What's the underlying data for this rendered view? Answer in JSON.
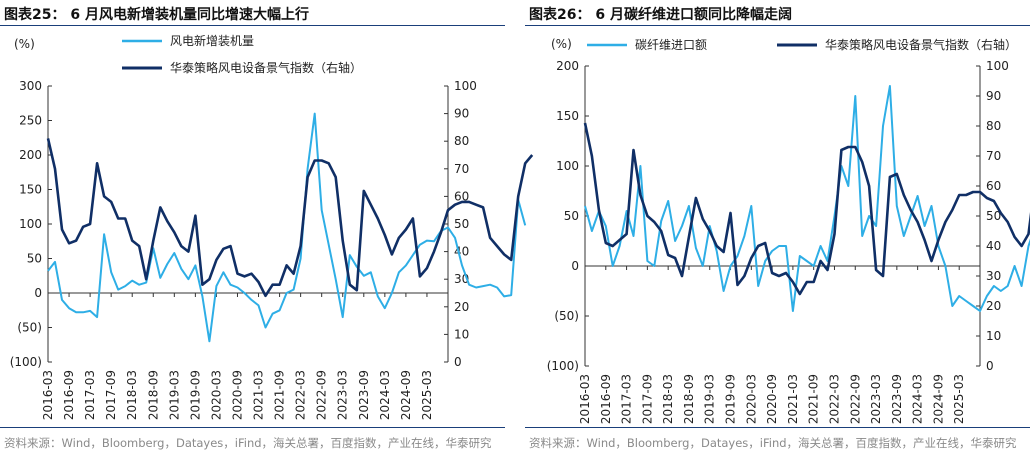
{
  "colors": {
    "light": "#2eaee6",
    "dark": "#102f66",
    "rule": "#1a3f7a",
    "source": "#8a8a8a"
  },
  "source_text": "资料来源：Wind，Bloomberg，Datayes，iFind，海关总署，百度指数，产业在线，华泰研究",
  "chart_data": [
    {
      "type": "line",
      "title": "图表25：  6 月风电新增装机量同比增速大幅上行",
      "unit_label": "(%)",
      "x_tick_labels": [
        "2016-03",
        "2016-09",
        "2017-03",
        "2017-09",
        "2018-03",
        "2018-09",
        "2019-03",
        "2019-09",
        "2020-03",
        "2020-09",
        "2021-03",
        "2021-09",
        "2022-03",
        "2022-09",
        "2023-03",
        "2023-09",
        "2024-03",
        "2024-09",
        "2025-03"
      ],
      "y_left_ticks": [
        "300",
        "250",
        "200",
        "150",
        "100",
        "50",
        "0",
        "(50)",
        "(100)"
      ],
      "y_left_lim": [
        -100,
        300
      ],
      "y_right_ticks": [
        "100",
        "90",
        "80",
        "70",
        "60",
        "50",
        "40",
        "30",
        "20",
        "10",
        "0"
      ],
      "y_right_lim": [
        0,
        100
      ],
      "grid": false,
      "legend": "top-center",
      "x_start": "2016-03",
      "x_step_months": 2,
      "series": [
        {
          "name": "风电新增装机量",
          "axis": "left",
          "color": "#2eaee6",
          "values": [
            32,
            45,
            -10,
            -22,
            -28,
            -28,
            -26,
            -35,
            85,
            30,
            5,
            10,
            18,
            12,
            15,
            65,
            22,
            42,
            58,
            35,
            20,
            40,
            -5,
            -70,
            10,
            30,
            12,
            8,
            0,
            -10,
            -18,
            -50,
            -30,
            -25,
            0,
            5,
            50,
            180,
            260,
            120,
            70,
            20,
            -35,
            55,
            38,
            25,
            30,
            -5,
            -22,
            0,
            30,
            40,
            55,
            70,
            76,
            75,
            90,
            95,
            80,
            40,
            12,
            8,
            10,
            12,
            8,
            -5,
            -3,
            135,
            98
          ]
        },
        {
          "name": "华泰策略风电设备景气指数（右轴）",
          "axis": "right",
          "color": "#102f66",
          "values": [
            81,
            70,
            48,
            43,
            44,
            49,
            50,
            72,
            60,
            58,
            52,
            52,
            44,
            42,
            30,
            44,
            56,
            51,
            47,
            42,
            40,
            53,
            28,
            30,
            37,
            41,
            42,
            32,
            31,
            32,
            29,
            24,
            28,
            28,
            35,
            32,
            42,
            67,
            73,
            73,
            72,
            67,
            44,
            28,
            26,
            62,
            57,
            52,
            46,
            39,
            45,
            48,
            52,
            31,
            34,
            40,
            47,
            55,
            57,
            58,
            58,
            57,
            56,
            45,
            42,
            39,
            37,
            60,
            72,
            75
          ]
        }
      ]
    },
    {
      "type": "line",
      "title": "图表26：  6 月碳纤维进口额同比降幅走阔",
      "unit_label": "(%)",
      "x_tick_labels": [
        "2016-03",
        "2016-09",
        "2017-03",
        "2017-09",
        "2018-03",
        "2018-09",
        "2019-03",
        "2019-09",
        "2020-03",
        "2020-09",
        "2021-03",
        "2021-09",
        "2022-03",
        "2022-09",
        "2023-03",
        "2023-09",
        "2024-03",
        "2024-09",
        "2025-03"
      ],
      "y_left_ticks": [
        "200",
        "150",
        "100",
        "50",
        "0",
        "(50)",
        "(100)"
      ],
      "y_left_lim": [
        -100,
        200
      ],
      "y_right_ticks": [
        "100",
        "90",
        "80",
        "70",
        "60",
        "50",
        "40",
        "30",
        "20",
        "10",
        "0"
      ],
      "y_right_lim": [
        0,
        100
      ],
      "grid": false,
      "legend": "top-center",
      "x_start": "2016-03",
      "x_step_months": 2,
      "series": [
        {
          "name": "碳纤维进口额",
          "axis": "left",
          "color": "#2eaee6",
          "values": [
            60,
            35,
            55,
            40,
            0,
            20,
            55,
            30,
            100,
            5,
            0,
            45,
            65,
            25,
            40,
            60,
            18,
            0,
            40,
            15,
            -25,
            0,
            10,
            30,
            60,
            -20,
            5,
            15,
            20,
            20,
            -45,
            10,
            5,
            0,
            20,
            5,
            50,
            100,
            80,
            170,
            30,
            50,
            40,
            140,
            180,
            60,
            30,
            50,
            70,
            40,
            60,
            20,
            0,
            -40,
            -30,
            -35,
            -40,
            -45,
            -30,
            -20,
            -25,
            -20,
            0,
            -20,
            20,
            40,
            10,
            0,
            5,
            -30
          ]
        },
        {
          "name": "华泰策略风电设备景气指数（右轴）",
          "axis": "right",
          "color": "#102f66",
          "values": [
            81,
            70,
            52,
            41,
            40,
            42,
            44,
            72,
            57,
            50,
            48,
            45,
            37,
            36,
            30,
            43,
            56,
            49,
            45,
            40,
            38,
            51,
            27,
            30,
            36,
            40,
            41,
            31,
            30,
            31,
            28,
            24,
            28,
            28,
            35,
            32,
            44,
            72,
            73,
            73,
            68,
            60,
            32,
            30,
            63,
            64,
            57,
            52,
            48,
            42,
            35,
            42,
            48,
            52,
            57,
            57,
            58,
            58,
            56,
            55,
            51,
            48,
            43,
            40,
            44,
            62,
            41,
            38,
            69,
            72
          ]
        }
      ]
    }
  ]
}
